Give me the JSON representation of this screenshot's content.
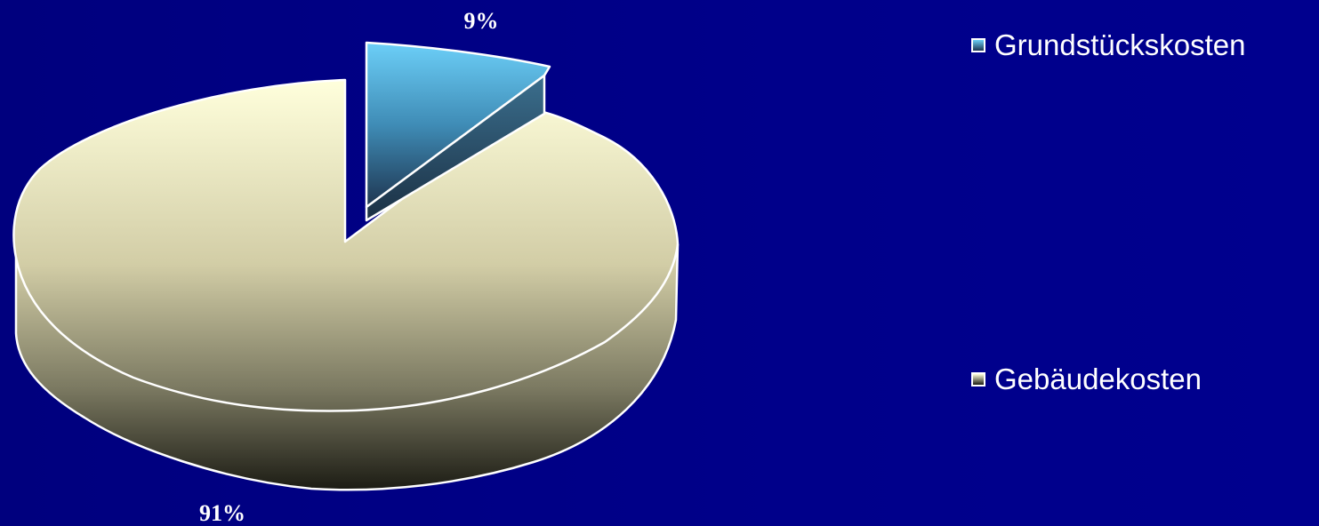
{
  "chart_data": {
    "type": "pie",
    "variant": "3d-exploded",
    "categories": [
      "Grundstückskosten",
      "Gebäudekosten"
    ],
    "values": [
      9,
      91
    ],
    "labels": [
      "9%",
      "91%"
    ],
    "legend_position": "right",
    "colors": {
      "Grundstückskosten": [
        "#6ccff8",
        "#1e3550"
      ],
      "Gebäudekosten": [
        "#ffffdc",
        "#1c1c14"
      ]
    }
  }
}
